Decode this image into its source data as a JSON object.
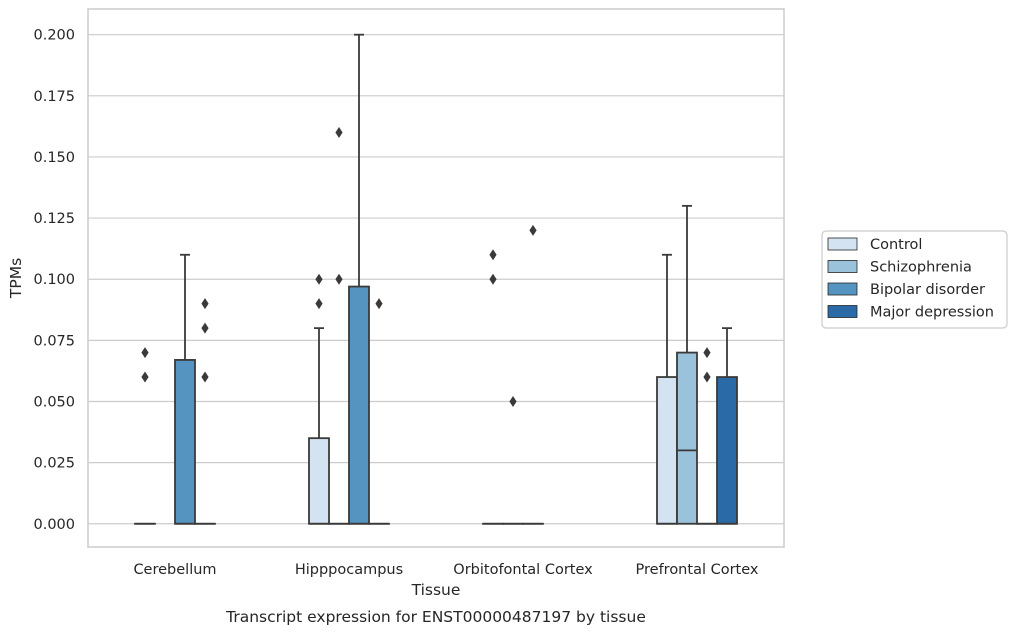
{
  "chart_data": {
    "type": "box",
    "xlabel": "Tissue",
    "ylabel": "TPMs",
    "caption": "Transcript expression for ENST00000487197 by tissue",
    "ylim": [
      -0.0095,
      0.2105
    ],
    "yticks": [
      "0.000",
      "0.025",
      "0.050",
      "0.075",
      "0.100",
      "0.125",
      "0.150",
      "0.175",
      "0.200"
    ],
    "grid": true,
    "legend_position": "right",
    "categories": [
      "Cerebellum",
      "Hipppocampus",
      "Orbitofontal Cortex",
      "Prefrontal Cortex"
    ],
    "series": [
      {
        "name": "Control",
        "color": "#d3e3f1",
        "boxes": [
          {
            "min": 0,
            "q1": 0,
            "median": 0,
            "q3": 0,
            "max": 0,
            "outliers": [
              0.06,
              0.07
            ]
          },
          {
            "min": 0,
            "q1": 0,
            "median": 0,
            "q3": 0.035,
            "max": 0.08,
            "outliers": [
              0.09,
              0.1
            ]
          },
          {
            "min": 0,
            "q1": 0,
            "median": 0,
            "q3": 0,
            "max": 0,
            "outliers": [
              0.1,
              0.11
            ]
          },
          {
            "min": 0,
            "q1": 0,
            "median": 0,
            "q3": 0.06,
            "max": 0.11,
            "outliers": []
          }
        ]
      },
      {
        "name": "Schizophrenia",
        "color": "#9ac2da",
        "boxes": [
          null,
          {
            "min": 0,
            "q1": 0,
            "median": 0,
            "q3": 0,
            "max": 0,
            "outliers": [
              0.1,
              0.16
            ]
          },
          {
            "min": 0,
            "q1": 0,
            "median": 0,
            "q3": 0,
            "max": 0,
            "outliers": [
              0.05
            ]
          },
          {
            "min": 0,
            "q1": 0,
            "median": 0.03,
            "q3": 0.07,
            "max": 0.13,
            "outliers": []
          }
        ]
      },
      {
        "name": "Bipolar disorder",
        "color": "#5593c1",
        "boxes": [
          {
            "min": 0,
            "q1": 0,
            "median": 0,
            "q3": 0.067,
            "max": 0.11,
            "outliers": []
          },
          {
            "min": 0,
            "q1": 0,
            "median": 0,
            "q3": 0.097,
            "max": 0.2,
            "outliers": []
          },
          {
            "min": 0,
            "q1": 0,
            "median": 0,
            "q3": 0,
            "max": 0,
            "outliers": [
              0.12
            ]
          },
          {
            "min": 0,
            "q1": 0,
            "median": 0,
            "q3": 0,
            "max": 0,
            "outliers": [
              0.06,
              0.07
            ]
          }
        ]
      },
      {
        "name": "Major depression",
        "color": "#2a6aa7",
        "boxes": [
          {
            "min": 0,
            "q1": 0,
            "median": 0,
            "q3": 0,
            "max": 0,
            "outliers": [
              0.06,
              0.08,
              0.09
            ]
          },
          {
            "min": 0,
            "q1": 0,
            "median": 0,
            "q3": 0,
            "max": 0,
            "outliers": [
              0.09
            ]
          },
          null,
          {
            "min": 0,
            "q1": 0,
            "median": 0,
            "q3": 0.06,
            "max": 0.08,
            "outliers": []
          }
        ]
      }
    ]
  }
}
